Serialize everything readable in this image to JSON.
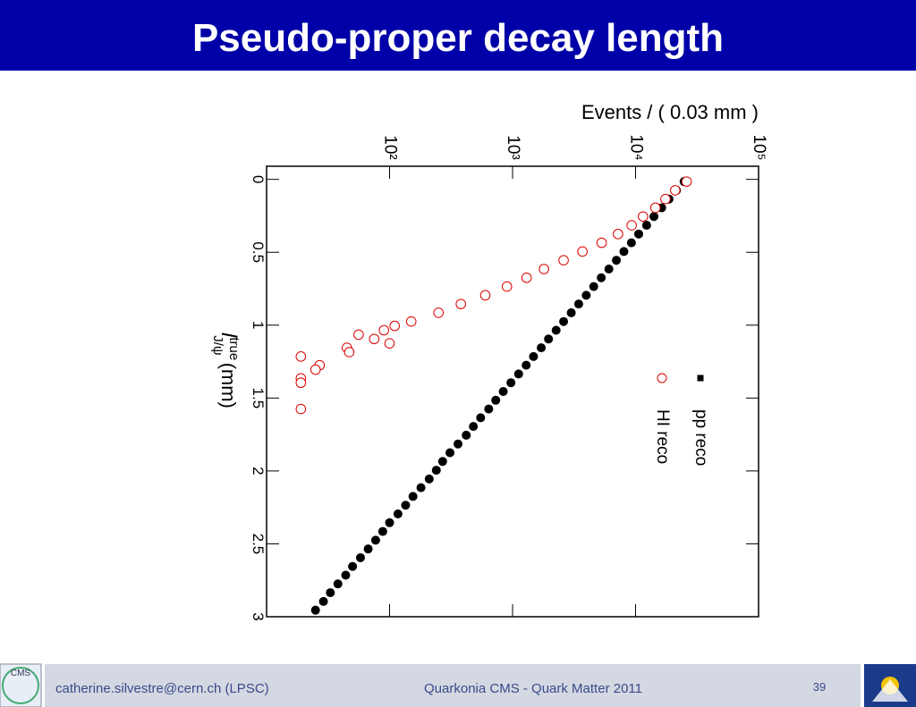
{
  "header": {
    "title": "Pseudo-proper decay length"
  },
  "chart_data": {
    "type": "scatter",
    "value_axis_label": "Events / ( 0.03 mm )",
    "x_label": {
      "symbol": "l",
      "sub": "J/ψ",
      "sup": "true",
      "unit": "(mm)"
    },
    "log_scale": true,
    "xlim": [
      -0.09,
      3
    ],
    "xticks": [
      0,
      0.5,
      1,
      1.5,
      2,
      2.5,
      3
    ],
    "ylim": [
      10,
      100000
    ],
    "yticks": [
      {
        "value": 100,
        "label": "10²"
      },
      {
        "value": 1000,
        "label": "10³"
      },
      {
        "value": 10000,
        "label": "10⁴"
      },
      {
        "value": 100000,
        "label": "10⁵"
      }
    ],
    "series": [
      {
        "name": "pp reco",
        "color": "#000000",
        "marker": "filled",
        "x": [
          0.015,
          0.075,
          0.135,
          0.195,
          0.255,
          0.315,
          0.375,
          0.435,
          0.495,
          0.555,
          0.615,
          0.675,
          0.735,
          0.795,
          0.855,
          0.915,
          0.975,
          1.035,
          1.095,
          1.155,
          1.215,
          1.275,
          1.335,
          1.395,
          1.455,
          1.515,
          1.575,
          1.635,
          1.695,
          1.755,
          1.815,
          1.875,
          1.935,
          1.995,
          2.055,
          2.115,
          2.175,
          2.235,
          2.295,
          2.355,
          2.415,
          2.475,
          2.535,
          2.595,
          2.655,
          2.715,
          2.775,
          2.835,
          2.895,
          2.955
        ],
        "values": [
          24800,
          21500,
          18700,
          16300,
          14100,
          12300,
          10600,
          9250,
          8040,
          6980,
          6070,
          5260,
          4570,
          3970,
          3450,
          3000,
          2600,
          2260,
          1960,
          1710,
          1480,
          1290,
          1120,
          970,
          840,
          730,
          640,
          550,
          480,
          420,
          360,
          310,
          270,
          240,
          210,
          180,
          155,
          135,
          117,
          100,
          88,
          77,
          67,
          58,
          50,
          44,
          38,
          33,
          29,
          25
        ]
      },
      {
        "name": "HI reco",
        "color": "#dd0000",
        "marker": "open",
        "x": [
          0.015,
          0.075,
          0.135,
          0.195,
          0.255,
          0.315,
          0.375,
          0.435,
          0.495,
          0.555,
          0.615,
          0.675,
          0.735,
          0.795,
          0.855,
          0.915,
          0.975,
          1.005,
          1.035,
          1.065,
          1.095,
          1.125,
          1.155,
          1.185,
          1.215,
          1.275,
          1.305,
          1.365,
          1.395,
          1.575
        ],
        "values": [
          26000,
          21000,
          17500,
          14500,
          11500,
          9300,
          7200,
          5300,
          3700,
          2600,
          1800,
          1300,
          900,
          600,
          380,
          250,
          150,
          110,
          90,
          56,
          75,
          100,
          45,
          47,
          19,
          27,
          25,
          19,
          19,
          19
        ]
      }
    ]
  },
  "footer": {
    "author": "catherine.silvestre@cern.ch (LPSC)",
    "event": "Quarkonia CMS - Quark Matter 2011",
    "page": "39",
    "logo_text": "CMS"
  }
}
